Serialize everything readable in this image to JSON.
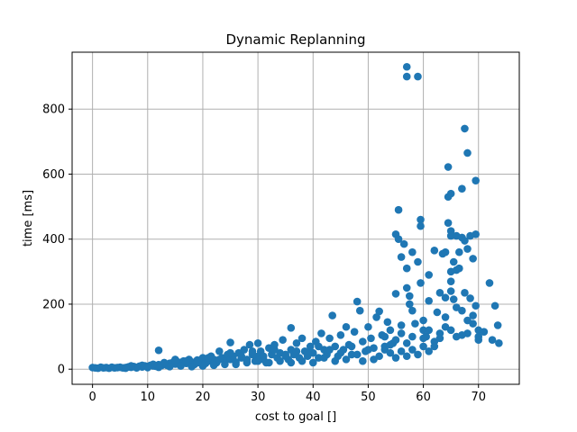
{
  "chart_data": {
    "type": "scatter",
    "title": "Dynamic Replanning",
    "xlabel": "cost to goal []",
    "ylabel": "time [ms]",
    "xlim": [
      -3.7,
      77.4
    ],
    "ylim": [
      -46.5,
      975
    ],
    "xticks": [
      0,
      10,
      20,
      30,
      40,
      50,
      60,
      70
    ],
    "yticks": [
      0,
      200,
      400,
      600,
      800
    ],
    "grid": true,
    "marker_color": "#1f77b4",
    "series": [
      {
        "points": [
          [
            0,
            5
          ],
          [
            0.5,
            4
          ],
          [
            1,
            3
          ],
          [
            1.5,
            6
          ],
          [
            2,
            4
          ],
          [
            2.5,
            5
          ],
          [
            3,
            3
          ],
          [
            3.5,
            6
          ],
          [
            4,
            4
          ],
          [
            4.5,
            5
          ],
          [
            5,
            6
          ],
          [
            5.5,
            4
          ],
          [
            6,
            5
          ],
          [
            6.5,
            7
          ],
          [
            7,
            6
          ],
          [
            7.5,
            8
          ],
          [
            8,
            5
          ],
          [
            8.5,
            9
          ],
          [
            9,
            7
          ],
          [
            9.5,
            10
          ],
          [
            10,
            8
          ],
          [
            10.5,
            12
          ],
          [
            11,
            10
          ],
          [
            11.5,
            9
          ],
          [
            12,
            58
          ],
          [
            12,
            14
          ],
          [
            12.5,
            11
          ],
          [
            13,
            15
          ],
          [
            13.5,
            12
          ],
          [
            14,
            18
          ],
          [
            14.5,
            20
          ],
          [
            15,
            16
          ],
          [
            15.5,
            22
          ],
          [
            16,
            14
          ],
          [
            16.5,
            25
          ],
          [
            17,
            18
          ],
          [
            17.5,
            30
          ],
          [
            18,
            22
          ],
          [
            18.5,
            15
          ],
          [
            19,
            28
          ],
          [
            19.5,
            20
          ],
          [
            20,
            35
          ],
          [
            20.5,
            18
          ],
          [
            21,
            25
          ],
          [
            21.5,
            40
          ],
          [
            22,
            30
          ],
          [
            22.5,
            20
          ],
          [
            23,
            55
          ],
          [
            23.5,
            35
          ],
          [
            24,
            25
          ],
          [
            24.5,
            45
          ],
          [
            25,
            82
          ],
          [
            25,
            30
          ],
          [
            25.5,
            40
          ],
          [
            26,
            22
          ],
          [
            26.5,
            50
          ],
          [
            27,
            35
          ],
          [
            27.5,
            60
          ],
          [
            28,
            30
          ],
          [
            28.5,
            75
          ],
          [
            29,
            45
          ],
          [
            29.5,
            25
          ],
          [
            30,
            80
          ],
          [
            30,
            40
          ],
          [
            30.5,
            55
          ],
          [
            31,
            30
          ],
          [
            31.5,
            20
          ],
          [
            32,
            65
          ],
          [
            32.5,
            45
          ],
          [
            33,
            75
          ],
          [
            33.5,
            35
          ],
          [
            34,
            50
          ],
          [
            34.5,
            90
          ],
          [
            35,
            40
          ],
          [
            35.5,
            30
          ],
          [
            36,
            127
          ],
          [
            36,
            60
          ],
          [
            36.5,
            45
          ],
          [
            37,
            80
          ],
          [
            37.5,
            35
          ],
          [
            38,
            95
          ],
          [
            38.5,
            55
          ],
          [
            39,
            40
          ],
          [
            39.5,
            70
          ],
          [
            40,
            50
          ],
          [
            40.5,
            85
          ],
          [
            41,
            35
          ],
          [
            41.5,
            110
          ],
          [
            42,
            60
          ],
          [
            42.5,
            45
          ],
          [
            43,
            95
          ],
          [
            43.5,
            165
          ],
          [
            44,
            70
          ],
          [
            44.5,
            40
          ],
          [
            45,
            105
          ],
          [
            45.5,
            60
          ],
          [
            46,
            130
          ],
          [
            46.5,
            75
          ],
          [
            47,
            45
          ],
          [
            47.5,
            115
          ],
          [
            48,
            208
          ],
          [
            48.5,
            180
          ],
          [
            49,
            85
          ],
          [
            49.5,
            55
          ],
          [
            50,
            130
          ],
          [
            50.5,
            95
          ],
          [
            51,
            65
          ],
          [
            51.5,
            160
          ],
          [
            52,
            178
          ],
          [
            52.5,
            105
          ],
          [
            53,
            60
          ],
          [
            53.5,
            145
          ],
          [
            54,
            120
          ],
          [
            54.5,
            80
          ],
          [
            55,
            415
          ],
          [
            55,
            232
          ],
          [
            55.5,
            400
          ],
          [
            55.5,
            490
          ],
          [
            56,
            135
          ],
          [
            56.5,
            385
          ],
          [
            56,
            345
          ],
          [
            57,
            930
          ],
          [
            57,
            900
          ],
          [
            57,
            310
          ],
          [
            57,
            250
          ],
          [
            57.5,
            200
          ],
          [
            57.5,
            225
          ],
          [
            58,
            360
          ],
          [
            58,
            180
          ],
          [
            58.5,
            140
          ],
          [
            59,
            900
          ],
          [
            59,
            330
          ],
          [
            59.5,
            460
          ],
          [
            59.5,
            440
          ],
          [
            59.5,
            265
          ],
          [
            60,
            150
          ],
          [
            60,
            120
          ],
          [
            60.5,
            100
          ],
          [
            61,
            210
          ],
          [
            61,
            290
          ],
          [
            62,
            365
          ],
          [
            62,
            85
          ],
          [
            62.5,
            175
          ],
          [
            63,
            235
          ],
          [
            63,
            110
          ],
          [
            63.5,
            355
          ],
          [
            64,
            360
          ],
          [
            64,
            220
          ],
          [
            64,
            160
          ],
          [
            64.5,
            530
          ],
          [
            64.5,
            622
          ],
          [
            64.5,
            450
          ],
          [
            65,
            540
          ],
          [
            65,
            425
          ],
          [
            65,
            410
          ],
          [
            65,
            300
          ],
          [
            65,
            270
          ],
          [
            65,
            240
          ],
          [
            65.5,
            330
          ],
          [
            65.5,
            215
          ],
          [
            66,
            410
          ],
          [
            66,
            305
          ],
          [
            66,
            190
          ],
          [
            66.5,
            360
          ],
          [
            66.5,
            310
          ],
          [
            67,
            555
          ],
          [
            67,
            405
          ],
          [
            67,
            180
          ],
          [
            67.5,
            740
          ],
          [
            67.5,
            395
          ],
          [
            67.5,
            235
          ],
          [
            68,
            665
          ],
          [
            68,
            370
          ],
          [
            68,
            150
          ],
          [
            68.5,
            410
          ],
          [
            68.5,
            218
          ],
          [
            69,
            340
          ],
          [
            69,
            165
          ],
          [
            69.5,
            580
          ],
          [
            69.5,
            415
          ],
          [
            69.5,
            195
          ],
          [
            70,
            120
          ],
          [
            70,
            100
          ],
          [
            71,
            115
          ],
          [
            72,
            265
          ],
          [
            72.5,
            90
          ],
          [
            73,
            195
          ],
          [
            73.5,
            135
          ],
          [
            73.7,
            80
          ],
          [
            60,
            70
          ],
          [
            61,
            55
          ],
          [
            59,
            45
          ],
          [
            58,
            60
          ],
          [
            57,
            40
          ],
          [
            56,
            55
          ],
          [
            55,
            35
          ],
          [
            54,
            50
          ],
          [
            53,
            70
          ],
          [
            52,
            40
          ],
          [
            51,
            30
          ],
          [
            50,
            60
          ],
          [
            49,
            25
          ],
          [
            48,
            45
          ],
          [
            47,
            70
          ],
          [
            46,
            30
          ],
          [
            45,
            50
          ],
          [
            44,
            25
          ],
          [
            43,
            60
          ],
          [
            42,
            35
          ],
          [
            41,
            70
          ],
          [
            40,
            20
          ],
          [
            39,
            50
          ],
          [
            38,
            25
          ],
          [
            37,
            55
          ],
          [
            36,
            20
          ],
          [
            35,
            45
          ],
          [
            34,
            25
          ],
          [
            33,
            60
          ],
          [
            32,
            20
          ],
          [
            31,
            40
          ],
          [
            30,
            25
          ],
          [
            29,
            55
          ],
          [
            28,
            20
          ],
          [
            27,
            40
          ],
          [
            26,
            15
          ],
          [
            25,
            50
          ],
          [
            24,
            15
          ],
          [
            23,
            30
          ],
          [
            22,
            12
          ],
          [
            21,
            35
          ],
          [
            20,
            10
          ],
          [
            19,
            20
          ],
          [
            18,
            8
          ],
          [
            17,
            25
          ],
          [
            16,
            10
          ],
          [
            15,
            30
          ],
          [
            14,
            8
          ],
          [
            13,
            20
          ],
          [
            12,
            6
          ],
          [
            11,
            15
          ],
          [
            10,
            5
          ],
          [
            9,
            12
          ],
          [
            8,
            4
          ],
          [
            7,
            10
          ],
          [
            6,
            3
          ],
          [
            64,
            130
          ],
          [
            66,
            100
          ],
          [
            68,
            110
          ],
          [
            70,
            90
          ],
          [
            62,
            70
          ],
          [
            63,
            95
          ],
          [
            65,
            120
          ],
          [
            67,
            105
          ],
          [
            69,
            140
          ],
          [
            61,
            120
          ],
          [
            60,
            95
          ],
          [
            58,
            100
          ],
          [
            57,
            80
          ],
          [
            56,
            110
          ],
          [
            55,
            90
          ],
          [
            54,
            75
          ],
          [
            53,
            100
          ]
        ]
      }
    ]
  }
}
